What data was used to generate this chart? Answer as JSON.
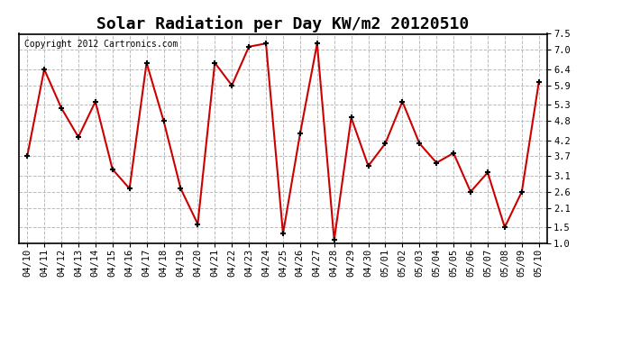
{
  "title": "Solar Radiation per Day KW/m2 20120510",
  "copyright_text": "Copyright 2012 Cartronics.com",
  "dates": [
    "04/10",
    "04/11",
    "04/12",
    "04/13",
    "04/14",
    "04/15",
    "04/16",
    "04/17",
    "04/18",
    "04/19",
    "04/20",
    "04/21",
    "04/22",
    "04/23",
    "04/24",
    "04/25",
    "04/26",
    "04/27",
    "04/28",
    "04/29",
    "04/30",
    "05/01",
    "05/02",
    "05/03",
    "05/04",
    "05/05",
    "05/06",
    "05/07",
    "05/08",
    "05/09",
    "05/10"
  ],
  "values": [
    3.7,
    6.4,
    5.2,
    4.3,
    5.4,
    3.3,
    2.7,
    6.6,
    4.8,
    2.7,
    1.6,
    6.6,
    5.9,
    7.1,
    7.2,
    1.3,
    4.4,
    7.2,
    1.1,
    4.9,
    3.4,
    4.1,
    5.4,
    4.1,
    3.5,
    3.8,
    2.6,
    3.2,
    1.5,
    2.6,
    6.0
  ],
  "line_color": "#cc0000",
  "marker_color": "#000000",
  "background_color": "#ffffff",
  "grid_color": "#bbbbbb",
  "ylim": [
    1.0,
    7.5
  ],
  "yticks": [
    1.0,
    1.5,
    2.1,
    2.6,
    3.1,
    3.7,
    4.2,
    4.8,
    5.3,
    5.9,
    6.4,
    7.0,
    7.5
  ],
  "title_fontsize": 13,
  "copyright_fontsize": 7,
  "tick_fontsize": 7.5,
  "fig_width": 6.9,
  "fig_height": 3.75,
  "dpi": 100
}
